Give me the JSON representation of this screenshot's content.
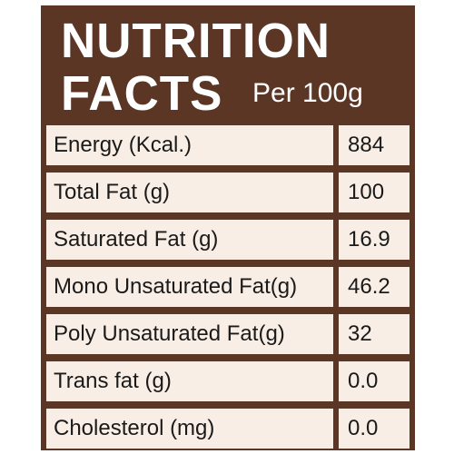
{
  "header": {
    "title_line1": "NUTRITION",
    "title_line2": "FACTS",
    "serving": "Per 100g"
  },
  "rows": [
    {
      "label": "Energy (Kcal.)",
      "value": "884"
    },
    {
      "label": "Total Fat (g)",
      "value": "100"
    },
    {
      "label": "Saturated Fat (g)",
      "value": "16.9"
    },
    {
      "label": "Mono Unsaturated Fat(g)",
      "value": "46.2"
    },
    {
      "label": "Poly Unsaturated Fat(g)",
      "value": "32"
    },
    {
      "label": "Trans fat (g)",
      "value": "0.0"
    },
    {
      "label": "Cholesterol (mg)",
      "value": "0.0"
    }
  ],
  "colors": {
    "panel": "#5b3625",
    "cell": "#f8eee5",
    "text": "#1a1a1a"
  }
}
